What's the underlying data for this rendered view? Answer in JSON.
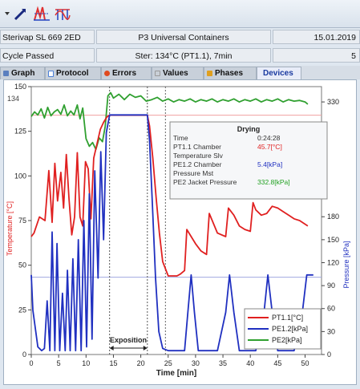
{
  "header": {
    "device_name": "Sterivap SL 669 2ED",
    "customer": "P3 Universal Containers",
    "date": "15.01.2019",
    "cycle_status": "Cycle Passed",
    "program": "Ster: 134°C (PT1.1), 7min",
    "cycle_number": "5"
  },
  "tabs": [
    {
      "label": "Graph",
      "icon": "chart-icon",
      "color": "#5a7fbf",
      "active": false
    },
    {
      "label": "Protocol",
      "icon": "document-icon",
      "color": "#4a7fd8",
      "active": false
    },
    {
      "label": "Errors",
      "icon": "error-icon",
      "color": "#e04a20",
      "active": false
    },
    {
      "label": "Values",
      "icon": "table-icon",
      "color": "#c9cfd6",
      "active": false
    },
    {
      "label": "Phases",
      "icon": "phases-icon",
      "color": "#e0a020",
      "active": false
    },
    {
      "label": "Devices",
      "icon": "",
      "color": "",
      "active": true
    }
  ],
  "tooltip": {
    "title": "Drying",
    "rows": [
      {
        "label": "Time",
        "value": "0:24:28",
        "color": "#333333"
      },
      {
        "label": "PT1.1 Chamber",
        "value": "45.7[°C]",
        "color": "#e02020"
      },
      {
        "label": "Temperature Slv",
        "value": "",
        "color": "#333333"
      },
      {
        "label": "PE1.2 Chamber",
        "value": "5.4[kPa]",
        "color": "#2030c0"
      },
      {
        "label": "Pressure Mst",
        "value": "",
        "color": "#333333"
      },
      {
        "label": "PE2 Jacket Pressure",
        "value": "332.8[kPa]",
        "color": "#20a020"
      }
    ]
  },
  "chart_data": {
    "type": "line",
    "xlabel": "Time [min]",
    "ylabel_left": "Temperature [°C]",
    "ylabel_right": "Pressure [kPa]",
    "xlim": [
      0,
      53
    ],
    "ylim_left": [
      0,
      150
    ],
    "ylim_right": [
      0,
      350
    ],
    "xticks": [
      0,
      5,
      10,
      15,
      20,
      25,
      30,
      35,
      40,
      45,
      50
    ],
    "yticks_left": [
      0,
      25,
      50,
      75,
      100,
      125,
      150
    ],
    "yticks_right": [
      0,
      30,
      60,
      90,
      120,
      150,
      180,
      330
    ],
    "annotation": "Exposition",
    "exposition_range": [
      14.3,
      21.2
    ],
    "cursor_x": 24.5,
    "reference_lines": {
      "temp_left": 134,
      "pressure_right": 101
    },
    "series": [
      {
        "name": "PT1.1[°C]",
        "axis": "left",
        "color": "#e02020",
        "x": [
          0,
          0.5,
          1.5,
          2.5,
          3.2,
          3.8,
          4.3,
          4.8,
          5.4,
          5.9,
          6.4,
          6.9,
          7.4,
          7.9,
          8.4,
          8.9,
          9.4,
          9.9,
          10.4,
          10.9,
          11.4,
          12,
          12.6,
          13.2,
          13.8,
          14.3,
          21.2,
          21.6,
          22.2,
          22.8,
          23.4,
          24,
          25,
          26,
          26.6,
          27.2,
          28,
          28.4,
          30,
          31,
          32,
          32.5,
          34,
          35.5,
          36,
          37,
          38,
          39,
          40,
          40.5,
          41,
          42,
          43,
          44,
          45,
          46,
          47,
          48,
          49,
          50,
          50.5
        ],
        "values": [
          66,
          68,
          77,
          75,
          103,
          74,
          107,
          86,
          102,
          82,
          112,
          87,
          67,
          77,
          113,
          77,
          72,
          108,
          104,
          76,
          110,
          118,
          126,
          130,
          133,
          134,
          134,
          128,
          110,
          88,
          68,
          52,
          44,
          44,
          44,
          45,
          47,
          70,
          62,
          58,
          56,
          79,
          68,
          66,
          82,
          78,
          72,
          70,
          69,
          85,
          81,
          78,
          79,
          83,
          82,
          80,
          78,
          76,
          75,
          73,
          72
        ]
      },
      {
        "name": "PE1.2[kPa]",
        "axis": "right",
        "color": "#2030c0",
        "x": [
          0,
          0.3,
          1.2,
          1.9,
          2.4,
          2.9,
          3.4,
          3.8,
          4.3,
          4.7,
          5.2,
          5.7,
          6.2,
          6.6,
          7.1,
          7.6,
          8.1,
          8.6,
          9.1,
          9.6,
          10.1,
          10.6,
          11.1,
          11.6,
          12.2,
          12.7,
          13.2,
          13.7,
          14.3,
          21.2,
          21.6,
          22.1,
          22.7,
          23.3,
          24,
          25,
          26,
          27,
          28,
          28.6,
          29.2,
          29.8,
          30.5,
          31,
          32,
          34,
          35.5,
          36.2,
          37,
          38,
          41,
          42.5,
          43.2,
          44,
          45,
          48,
          49.5,
          50.3,
          51,
          51.5
        ],
        "values": [
          104,
          58,
          10,
          5,
          8,
          70,
          5,
          160,
          5,
          145,
          5,
          80,
          5,
          110,
          5,
          125,
          5,
          150,
          5,
          175,
          10,
          210,
          20,
          240,
          100,
          265,
          150,
          290,
          313,
          313,
          280,
          200,
          100,
          30,
          8,
          5,
          5,
          5,
          5,
          55,
          104,
          55,
          5,
          5,
          5,
          5,
          55,
          104,
          55,
          5,
          5,
          55,
          104,
          55,
          5,
          5,
          55,
          104,
          104,
          104
        ]
      },
      {
        "name": "PE2[kPa]",
        "axis": "right",
        "color": "#30a030",
        "x": [
          0,
          0.6,
          1.2,
          1.8,
          2.4,
          3,
          3.6,
          4.2,
          4.8,
          5.4,
          6,
          6.6,
          7.2,
          7.8,
          8.4,
          8.9,
          9.4,
          10,
          10.6,
          11.2,
          11.8,
          12.4,
          13,
          13.5,
          14,
          14.5,
          15,
          16,
          17,
          18,
          19,
          20,
          21,
          22,
          23,
          24,
          25,
          26,
          27,
          28,
          29,
          30,
          31,
          32,
          33,
          34,
          35,
          36,
          37,
          38,
          39,
          40,
          41,
          42,
          43,
          44,
          45,
          46,
          47,
          48,
          49,
          50,
          50.5
        ],
        "values": [
          311,
          317,
          313,
          321,
          309,
          323,
          312,
          317,
          320,
          314,
          326,
          312,
          318,
          313,
          326,
          308,
          322,
          282,
          272,
          277,
          268,
          283,
          278,
          298,
          338,
          342,
          335,
          340,
          333,
          340,
          336,
          338,
          331,
          333,
          336,
          331,
          334,
          330,
          333,
          331,
          334,
          330,
          333,
          331,
          334,
          330,
          333,
          331,
          334,
          330,
          333,
          331,
          334,
          330,
          333,
          331,
          334,
          330,
          333,
          331,
          332,
          330,
          327
        ]
      }
    ]
  }
}
